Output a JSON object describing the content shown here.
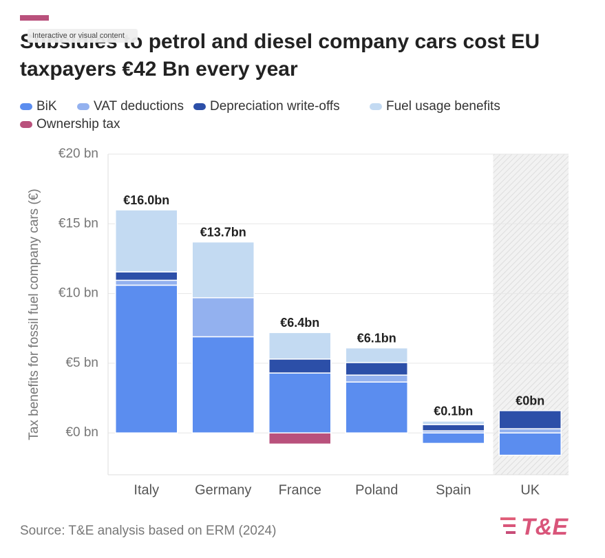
{
  "chart_data": {
    "type": "stacked_bar",
    "tooltip": "Interactive or visual content",
    "title": [
      "Subsidies to petrol and diesel company cars cost EU",
      "taxpayers €42 Bn every year"
    ],
    "y_label": "Tax benefits for fossil fuel company cars (€)",
    "source": "Source: T&E analysis based on ERM (2024)",
    "logo": "T&E",
    "categories": [
      "Italy",
      "Germany",
      "France",
      "Poland",
      "Spain",
      "UK"
    ],
    "series": [
      {
        "name": "BiK",
        "color": "#5b8def",
        "values": [
          10.6,
          6.9,
          4.3,
          3.65,
          -0.75,
          -1.6
        ]
      },
      {
        "name": "VAT deductions",
        "color": "#93b1ef",
        "values": [
          0.35,
          2.8,
          0,
          0.5,
          0.15,
          0.3
        ]
      },
      {
        "name": "Depreciation write-offs",
        "color": "#2c4fa8",
        "values": [
          0.6,
          0,
          1.0,
          0.9,
          0.45,
          1.3
        ]
      },
      {
        "name": "Fuel usage benefits",
        "color": "#c3daf2",
        "values": [
          4.45,
          4.0,
          1.9,
          1.05,
          0.25,
          0
        ]
      },
      {
        "name": "Ownership tax",
        "color": "#b9517c",
        "values": [
          0,
          0,
          -0.8,
          0,
          0,
          0
        ]
      }
    ],
    "totals": {
      "values": [
        16.0,
        13.7,
        6.4,
        6.1,
        0.1,
        0
      ],
      "value_labels": [
        "€16.0bn",
        "€13.7bn",
        "€6.4bn",
        "€6.1bn",
        "€0.1bn",
        "€0bn"
      ]
    },
    "shaded_category_index": 5,
    "ylim": [
      -3,
      20
    ],
    "yticks": [
      {
        "value": 0,
        "label": "€0 bn"
      },
      {
        "value": 5,
        "label": "€5 bn"
      },
      {
        "value": 10,
        "label": "€10 bn"
      },
      {
        "value": 15,
        "label": "€15 bn"
      },
      {
        "value": 20,
        "label": "€20 bn"
      }
    ],
    "grid": true
  }
}
